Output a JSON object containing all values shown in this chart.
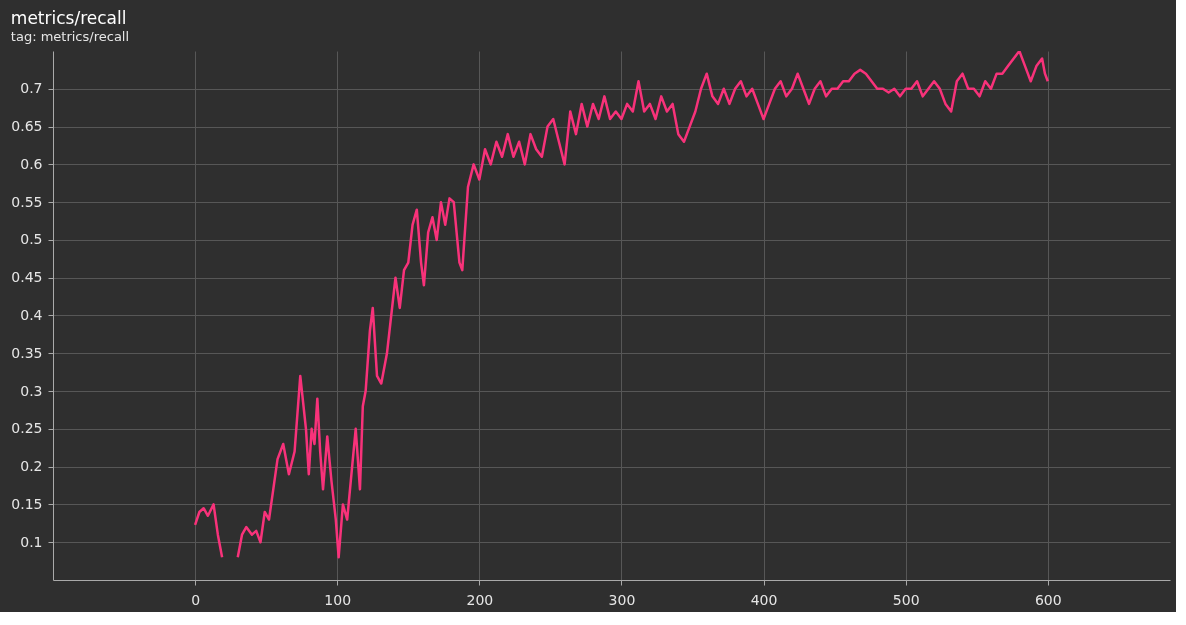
{
  "chart_data": {
    "type": "line",
    "title": "metrics/recall",
    "subtitle": "tag: metrics/recall",
    "xlim": [
      -100,
      686
    ],
    "xticks": [
      0,
      100,
      200,
      300,
      400,
      500,
      600
    ],
    "ylim": [
      0.05,
      0.75
    ],
    "yticks": [
      0.1,
      0.15,
      0.2,
      0.25,
      0.3,
      0.35,
      0.4,
      0.45,
      0.5,
      0.55,
      0.6,
      0.65,
      0.7
    ],
    "grid": true,
    "line_style": "solid",
    "series": [
      {
        "color": "#f8327a",
        "x": [
          0,
          3,
          6,
          9,
          13,
          16,
          19,
          22,
          28,
          30,
          33,
          36,
          40,
          43,
          46,
          49,
          52,
          55,
          58,
          62,
          66,
          70,
          74,
          78,
          80,
          82,
          84,
          86,
          88,
          90,
          93,
          96,
          99,
          101,
          104,
          107,
          110,
          113,
          116,
          118,
          120,
          123,
          125,
          128,
          131,
          135,
          138,
          141,
          144,
          147,
          150,
          153,
          156,
          159,
          161,
          164,
          167,
          170,
          173,
          176,
          179,
          182,
          186,
          188,
          192,
          196,
          200,
          204,
          208,
          212,
          216,
          220,
          224,
          228,
          232,
          236,
          240,
          244,
          248,
          252,
          256,
          260,
          264,
          268,
          272,
          276,
          280,
          284,
          288,
          292,
          296,
          300,
          304,
          308,
          312,
          316,
          320,
          324,
          328,
          332,
          336,
          340,
          344,
          348,
          352,
          356,
          360,
          364,
          368,
          372,
          376,
          380,
          384,
          388,
          392,
          396,
          400,
          404,
          408,
          412,
          416,
          420,
          424,
          428,
          432,
          436,
          440,
          444,
          448,
          452,
          456,
          460,
          464,
          468,
          472,
          476,
          480,
          484,
          488,
          492,
          496,
          500,
          504,
          508,
          512,
          516,
          520,
          524,
          528,
          532,
          536,
          540,
          544,
          548,
          552,
          556,
          560,
          564,
          568,
          572,
          576,
          580,
          584,
          588,
          592,
          596,
          598,
          600
        ],
        "values": [
          0.123,
          0.14,
          0.145,
          0.135,
          0.15,
          0.11,
          0.08,
          null,
          null,
          0.08,
          0.11,
          0.12,
          0.11,
          0.115,
          0.1,
          0.14,
          0.13,
          0.17,
          0.21,
          0.23,
          0.19,
          0.22,
          0.32,
          0.25,
          0.19,
          0.25,
          0.23,
          0.29,
          0.22,
          0.17,
          0.24,
          0.18,
          0.13,
          0.08,
          0.15,
          0.13,
          0.19,
          0.25,
          0.17,
          0.28,
          0.3,
          0.38,
          0.41,
          0.32,
          0.31,
          0.35,
          0.4,
          0.45,
          0.41,
          0.46,
          0.47,
          0.52,
          0.54,
          0.47,
          0.44,
          0.51,
          0.53,
          0.5,
          0.55,
          0.52,
          0.555,
          0.55,
          0.47,
          0.46,
          0.57,
          0.6,
          0.58,
          0.62,
          0.6,
          0.63,
          0.61,
          0.64,
          0.61,
          0.63,
          0.6,
          0.64,
          0.62,
          0.61,
          0.65,
          0.66,
          0.63,
          0.6,
          0.67,
          0.64,
          0.68,
          0.65,
          0.68,
          0.66,
          0.69,
          0.66,
          0.67,
          0.66,
          0.68,
          0.67,
          0.71,
          0.67,
          0.68,
          0.66,
          0.69,
          0.67,
          0.68,
          0.64,
          0.63,
          0.65,
          0.67,
          0.7,
          0.72,
          0.69,
          0.68,
          0.7,
          0.68,
          0.7,
          0.71,
          0.69,
          0.7,
          0.68,
          0.66,
          0.68,
          0.7,
          0.71,
          0.69,
          0.7,
          0.72,
          0.7,
          0.68,
          0.7,
          0.71,
          0.69,
          0.7,
          0.7,
          0.71,
          0.71,
          0.72,
          0.725,
          0.72,
          0.71,
          0.7,
          0.7,
          0.695,
          0.7,
          0.69,
          0.7,
          0.7,
          0.71,
          0.69,
          0.7,
          0.71,
          0.7,
          0.68,
          0.67,
          0.71,
          0.72,
          0.7,
          0.7,
          0.69,
          0.71,
          0.7,
          0.72,
          0.72,
          0.73,
          0.74,
          0.75,
          0.73,
          0.71,
          0.73,
          0.74,
          0.72,
          0.71
        ]
      }
    ]
  }
}
